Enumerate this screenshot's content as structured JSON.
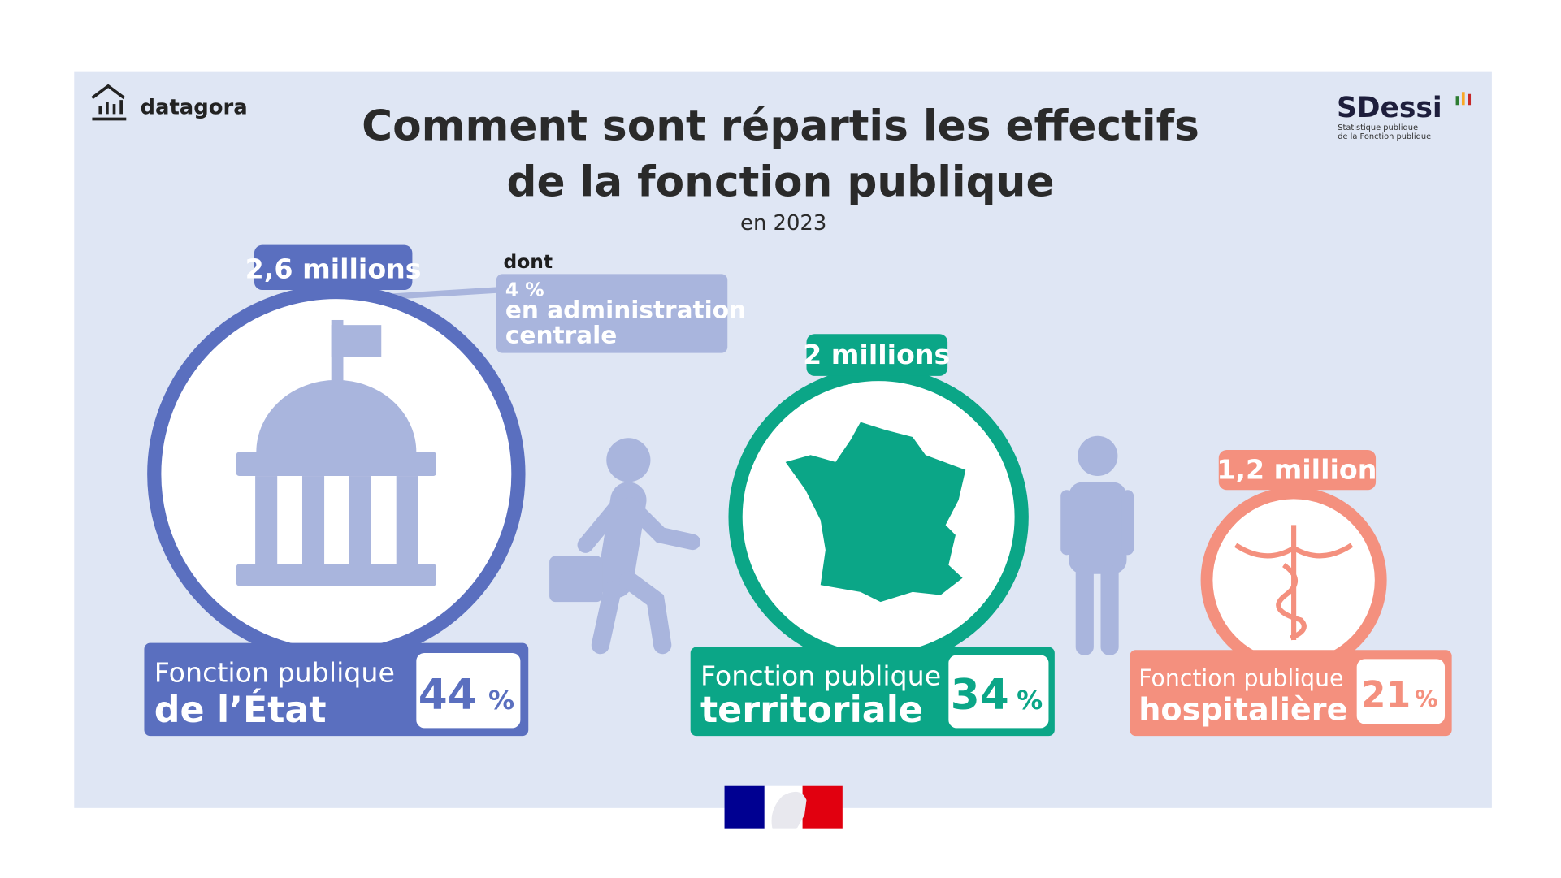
{
  "header": {
    "brand": "datagora",
    "title_lines": [
      "Comment sont répartis les effectifs",
      "de la fonction publique"
    ],
    "subtitle": "en 2023",
    "logo": {
      "name": "SDessi",
      "lines": [
        "Statistique publique",
        "de la Fonction publique"
      ]
    }
  },
  "groups": [
    {
      "count": "2,6 millions",
      "label_lines": [
        "Fonction publique",
        "de l’État"
      ],
      "share": "44",
      "unit": "%"
    },
    {
      "count": "2 millions",
      "label_lines": [
        "Fonction publique",
        "territoriale"
      ],
      "share": "34",
      "unit": "%"
    },
    {
      "count": "1,2 million",
      "label_lines": [
        "Fonction publique",
        "hospitalière"
      ],
      "share": "21",
      "unit": "%"
    }
  ],
  "note": {
    "intro": "dont",
    "lines": [
      "4 %",
      "en administration",
      "centrale"
    ]
  }
}
